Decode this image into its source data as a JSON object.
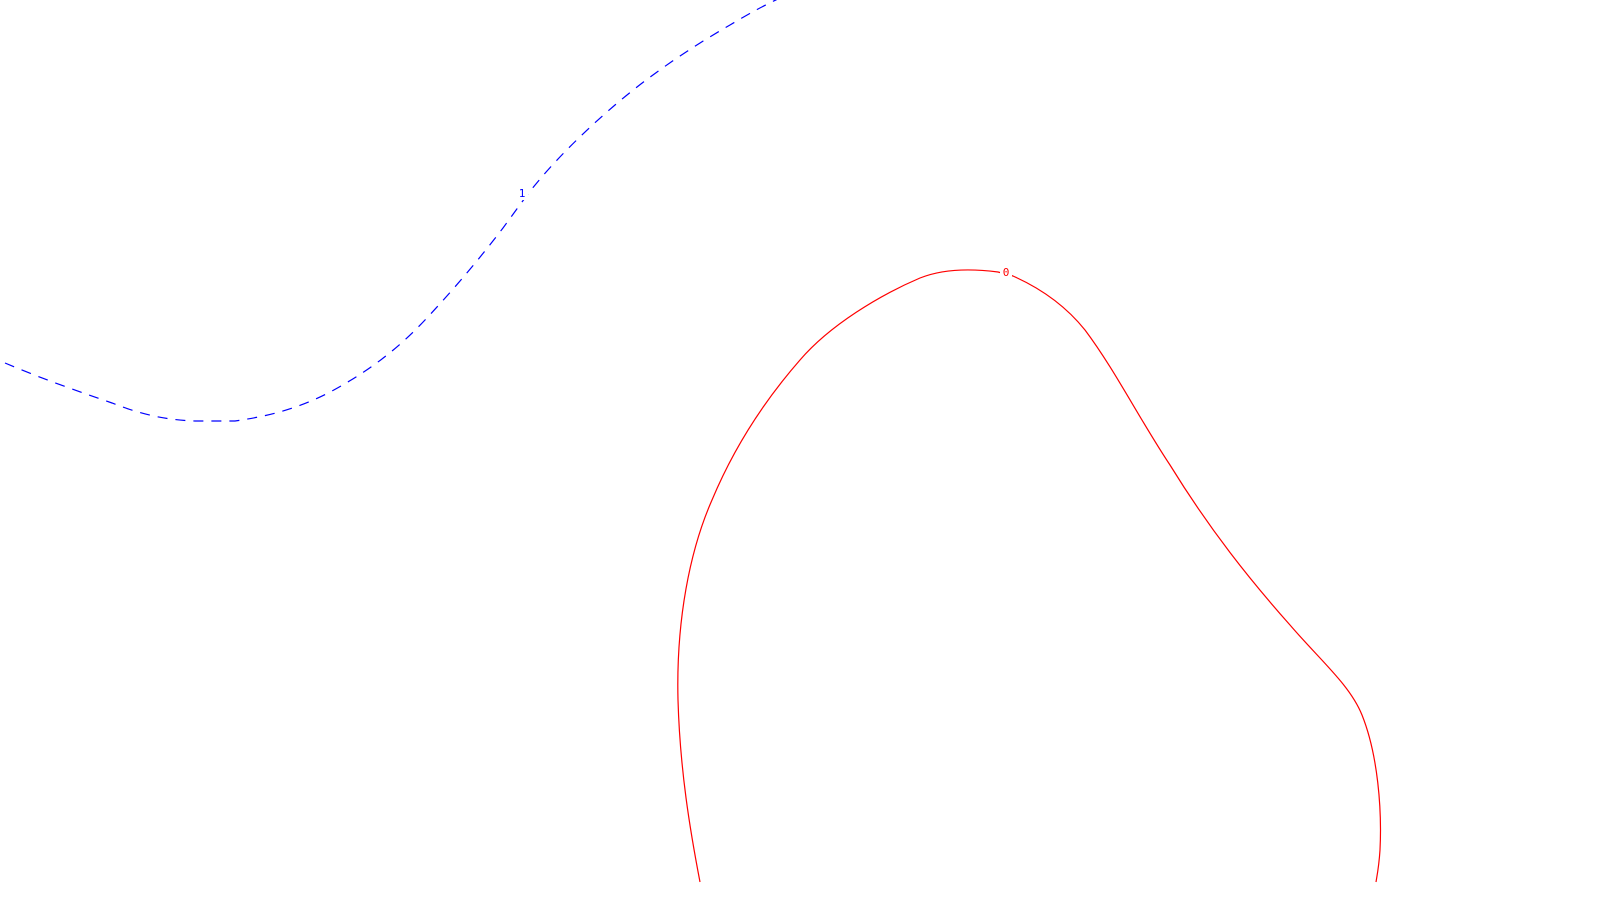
{
  "map": {
    "background": "#ffffff",
    "contours": [
      {
        "id": "contour-1",
        "label": "1",
        "color": "#0000ff",
        "style": "dashed"
      },
      {
        "id": "contour-0",
        "label": "0",
        "color": "#ff0000",
        "style": "solid"
      }
    ]
  }
}
